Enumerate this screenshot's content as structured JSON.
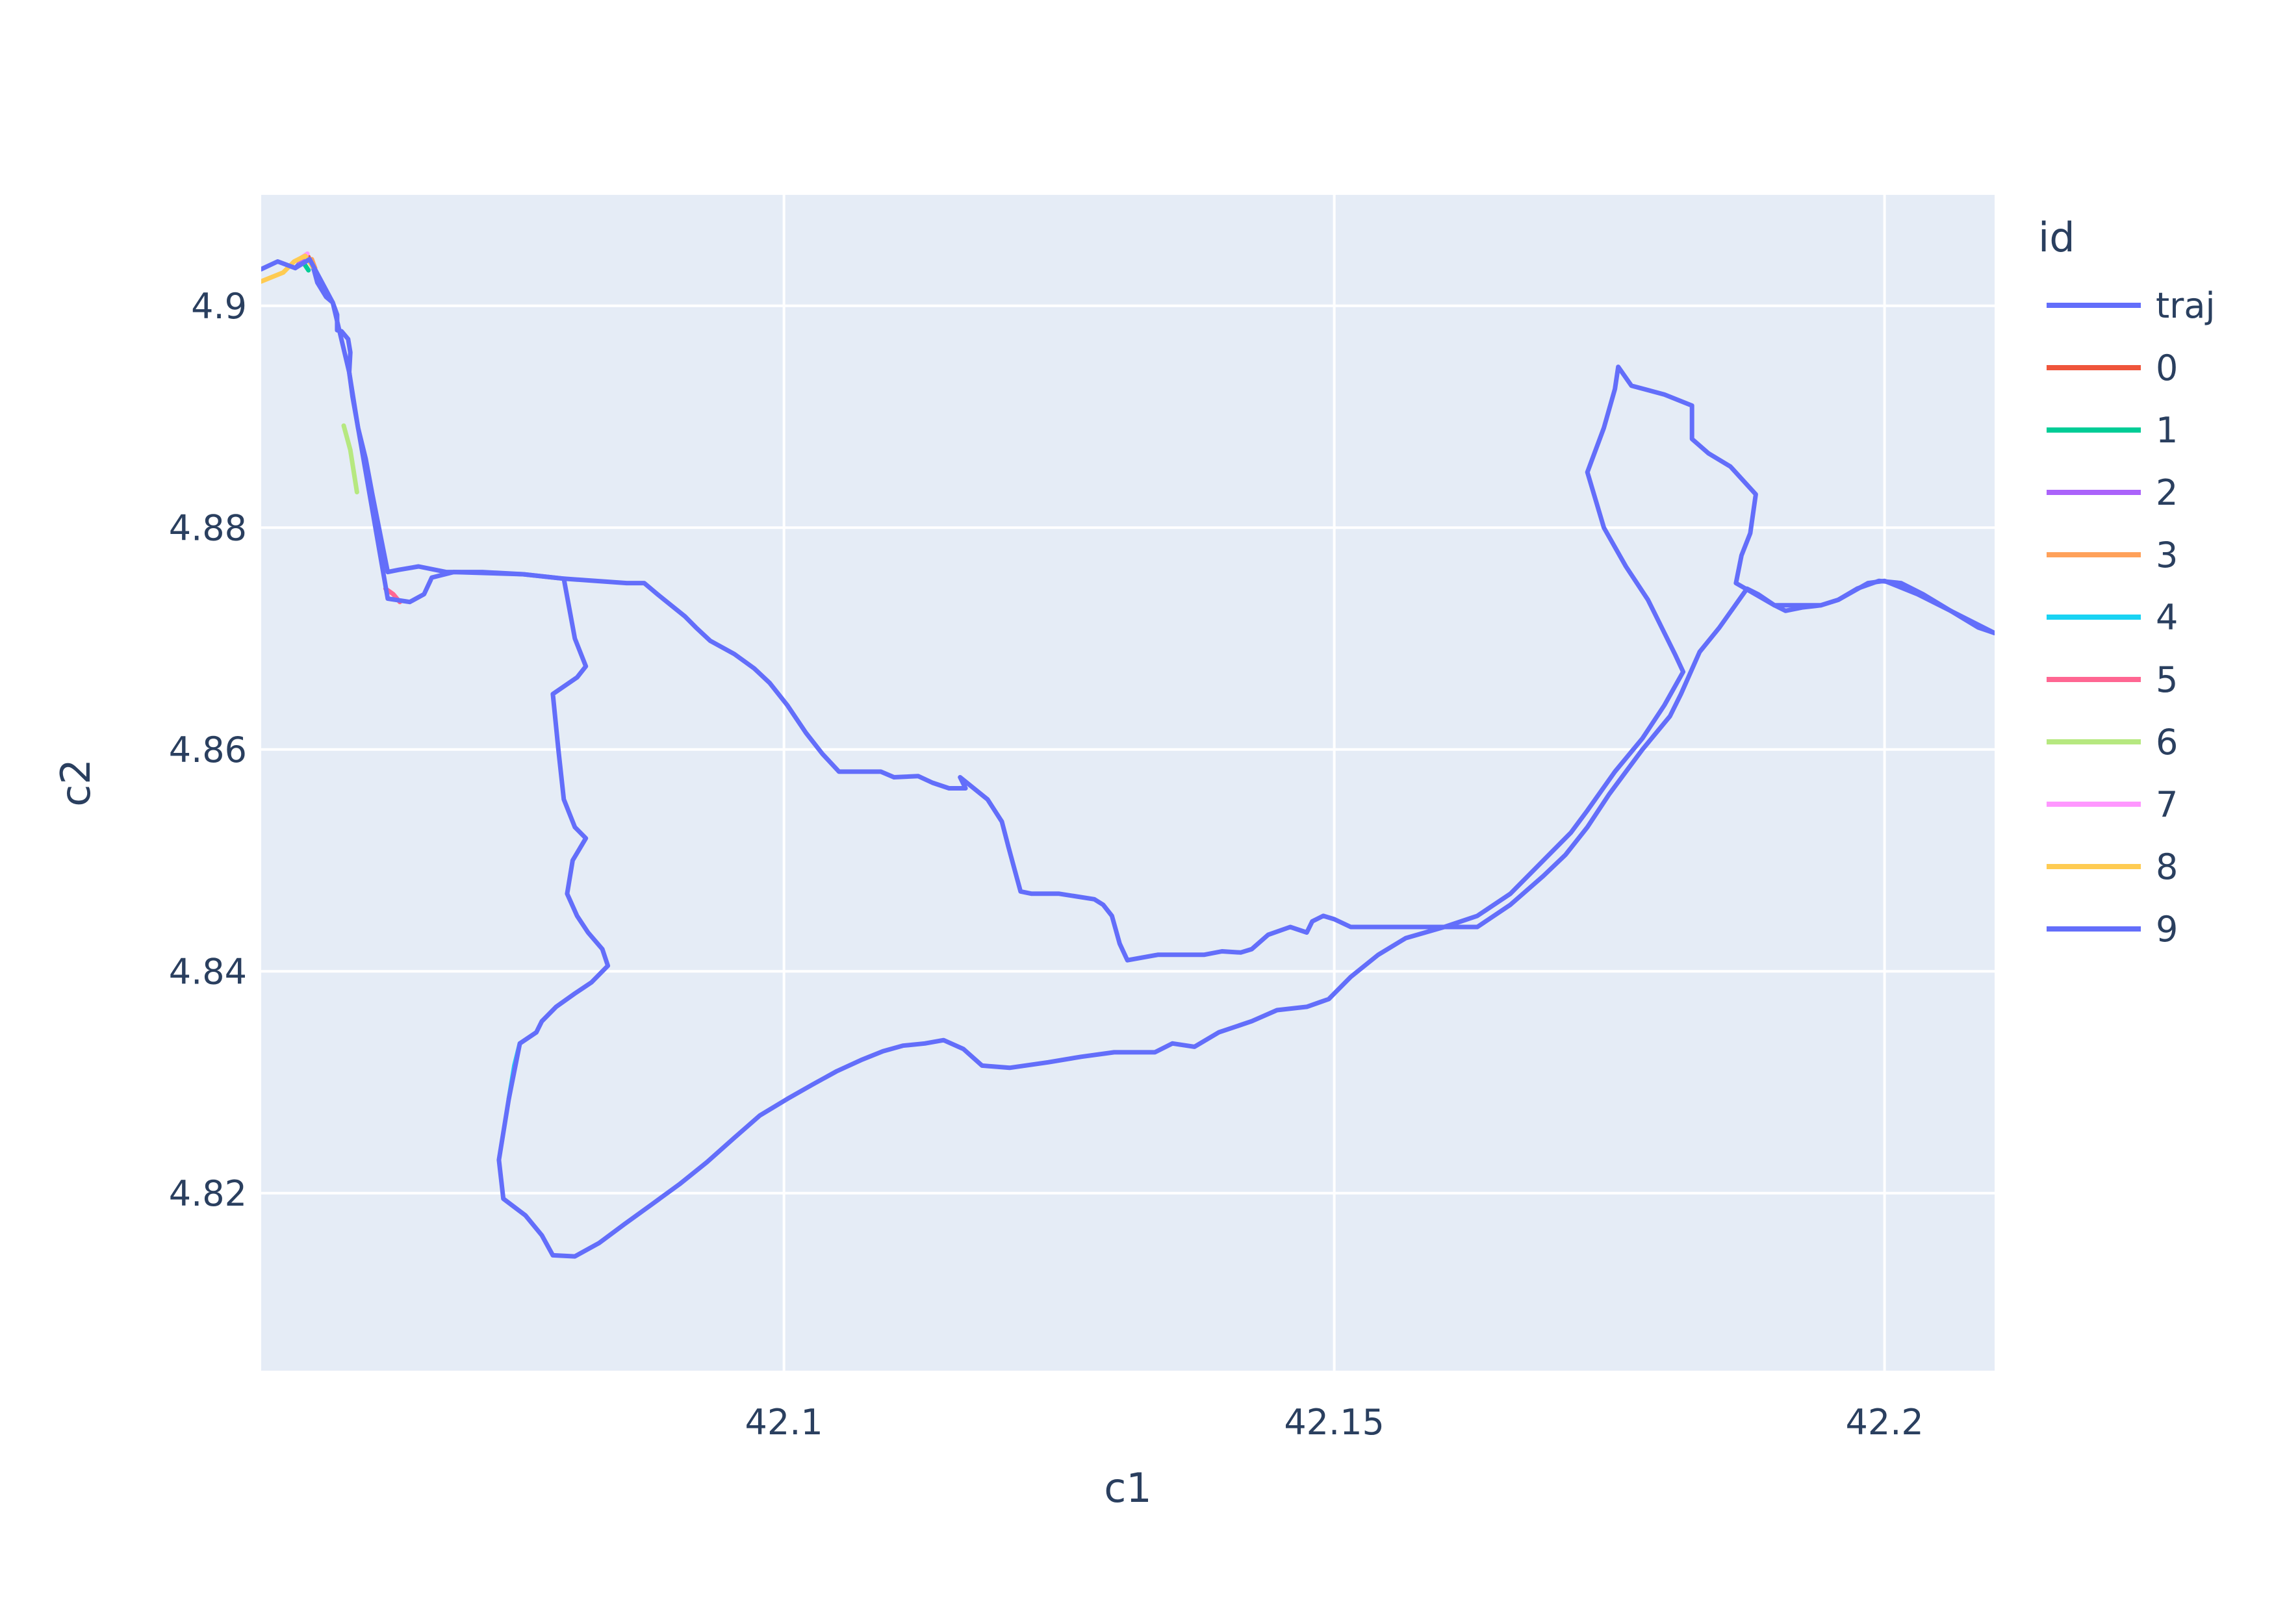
{
  "chart_data": {
    "type": "line",
    "xlabel": "c1",
    "ylabel": "c2",
    "xlim": [
      42.0525,
      42.21
    ],
    "ylim": [
      4.804,
      4.91
    ],
    "x_ticks": [
      {
        "value": 42.1,
        "label": "42.1"
      },
      {
        "value": 42.15,
        "label": "42.15"
      },
      {
        "value": 42.2,
        "label": "42.2"
      }
    ],
    "y_ticks": [
      {
        "value": 4.82,
        "label": "4.82"
      },
      {
        "value": 4.84,
        "label": "4.84"
      },
      {
        "value": 4.86,
        "label": "4.86"
      },
      {
        "value": 4.88,
        "label": "4.88"
      },
      {
        "value": 4.9,
        "label": "4.9"
      }
    ],
    "grid": true,
    "legend_title": "id",
    "legend_position": "right",
    "plot_bgcolor": "#e5ecf6",
    "series": [
      {
        "name": "traj",
        "color": "#636efa",
        "points": [
          [
            42.0556,
            4.9034
          ],
          [
            42.0565,
            4.9044
          ],
          [
            42.0569,
            4.9042
          ],
          [
            42.0573,
            4.9032
          ],
          [
            42.0576,
            4.9021
          ],
          [
            42.0584,
            4.9008
          ],
          [
            42.059,
            4.9003
          ],
          [
            42.0594,
            4.8992
          ],
          [
            42.0594,
            4.8978
          ],
          [
            42.0598,
            4.8977
          ],
          [
            42.0604,
            4.897
          ],
          [
            42.0606,
            4.8958
          ],
          [
            42.0605,
            4.894
          ],
          [
            42.0608,
            4.8918
          ],
          [
            42.0613,
            4.889
          ],
          [
            42.062,
            4.8862
          ],
          [
            42.0626,
            4.883
          ],
          [
            42.0634,
            4.879
          ],
          [
            42.064,
            4.876
          ],
          [
            42.065,
            4.8762
          ],
          [
            42.0668,
            4.8765
          ],
          [
            42.0693,
            4.876
          ],
          [
            42.0726,
            4.876
          ],
          [
            42.0763,
            4.8758
          ],
          [
            42.08,
            4.8754
          ],
          [
            42.0857,
            4.875
          ],
          [
            42.0873,
            4.875
          ],
          [
            42.0885,
            4.874
          ],
          [
            42.091,
            4.872
          ],
          [
            42.092,
            4.871
          ],
          [
            42.0933,
            4.8698
          ],
          [
            42.0955,
            4.8686
          ],
          [
            42.0973,
            4.8673
          ],
          [
            42.0987,
            4.866
          ],
          [
            42.1003,
            4.864
          ],
          [
            42.102,
            4.8615
          ],
          [
            42.1035,
            4.8596
          ],
          [
            42.105,
            4.858
          ],
          [
            42.107,
            4.858
          ],
          [
            42.1088,
            4.858
          ],
          [
            42.11,
            4.8575
          ],
          [
            42.1122,
            4.8576
          ],
          [
            42.1135,
            4.857
          ],
          [
            42.115,
            4.8565
          ],
          [
            42.1165,
            4.8565
          ],
          [
            42.116,
            4.8575
          ],
          [
            42.1185,
            4.8555
          ],
          [
            42.1198,
            4.8535
          ],
          [
            42.1204,
            4.8512
          ],
          [
            42.121,
            4.849
          ],
          [
            42.1215,
            4.8472
          ],
          [
            42.1225,
            4.847
          ],
          [
            42.125,
            4.847
          ],
          [
            42.1282,
            4.8465
          ],
          [
            42.129,
            4.846
          ],
          [
            42.1298,
            4.845
          ],
          [
            42.1305,
            4.8425
          ],
          [
            42.1312,
            4.841
          ],
          [
            42.134,
            4.8415
          ],
          [
            42.136,
            4.8415
          ],
          [
            42.1382,
            4.8415
          ],
          [
            42.1398,
            4.8418
          ],
          [
            42.1415,
            4.8417
          ],
          [
            42.1425,
            4.842
          ],
          [
            42.144,
            4.8433
          ],
          [
            42.146,
            4.844
          ],
          [
            42.1475,
            4.8435
          ],
          [
            42.148,
            4.8445
          ],
          [
            42.149,
            4.845
          ],
          [
            42.15,
            4.8447
          ],
          [
            42.1515,
            4.844
          ],
          [
            42.154,
            4.844
          ],
          [
            42.1575,
            4.844
          ],
          [
            42.16,
            4.844
          ],
          [
            42.163,
            4.844
          ],
          [
            42.166,
            4.846
          ],
          [
            42.169,
            4.8486
          ],
          [
            42.171,
            4.8505
          ],
          [
            42.173,
            4.853
          ],
          [
            42.175,
            4.856
          ],
          [
            42.178,
            4.86
          ],
          [
            42.1805,
            4.863
          ],
          [
            42.1815,
            4.865
          ],
          [
            42.1832,
            4.8688
          ],
          [
            42.185,
            4.871
          ],
          [
            42.1875,
            4.8745
          ],
          [
            42.1885,
            4.874
          ],
          [
            42.19,
            4.873
          ],
          [
            42.191,
            4.8725
          ],
          [
            42.1925,
            4.8728
          ],
          [
            42.1942,
            4.873
          ],
          [
            42.1958,
            4.8735
          ],
          [
            42.1975,
            4.8745
          ],
          [
            42.1995,
            4.8752
          ],
          [
            42.2015,
            4.875
          ],
          [
            42.2035,
            4.874
          ],
          [
            42.206,
            4.8725
          ],
          [
            42.2085,
            4.871
          ],
          [
            42.21,
            4.8705
          ]
        ]
      },
      {
        "name": "0",
        "color": "#ef553b",
        "points": [
          [
            42.0562,
            4.904
          ],
          [
            42.0568,
            4.9044
          ]
        ]
      },
      {
        "name": "1",
        "color": "#00cc96",
        "points": [
          [
            42.0564,
            4.9038
          ],
          [
            42.0568,
            4.9032
          ]
        ]
      },
      {
        "name": "2",
        "color": "#ab63fa",
        "points": [
          [
            42.0559,
            4.904
          ],
          [
            42.0566,
            4.9045
          ]
        ]
      },
      {
        "name": "3",
        "color": "#ffa15a",
        "points": [
          [
            42.0571,
            4.9042
          ],
          [
            42.0574,
            4.9034
          ]
        ]
      },
      {
        "name": "4",
        "color": "#19d3f3",
        "points": [
          [
            42.076,
            4.8335
          ],
          [
            42.0755,
            4.8315
          ],
          [
            42.075,
            4.8285
          ]
        ]
      },
      {
        "name": "5",
        "color": "#ff6692",
        "points": [
          [
            42.0638,
            4.8745
          ],
          [
            42.0645,
            4.874
          ],
          [
            42.0651,
            4.8733
          ]
        ]
      },
      {
        "name": "6",
        "color": "#b6e880",
        "points": [
          [
            42.06,
            4.8892
          ],
          [
            42.0606,
            4.887
          ],
          [
            42.0612,
            4.8832
          ]
        ]
      },
      {
        "name": "7",
        "color": "#ff97ff",
        "points": [
          [
            42.0561,
            4.9043
          ],
          [
            42.0567,
            4.9047
          ]
        ]
      },
      {
        "name": "8",
        "color": "#fecb52",
        "points": [
          [
            42.0525,
            4.9022
          ],
          [
            42.0545,
            4.903
          ],
          [
            42.0555,
            4.904
          ],
          [
            42.0565,
            4.9045
          ],
          [
            42.0572,
            4.9035
          ]
        ]
      },
      {
        "name": "9",
        "color": "#636efa",
        "points": [
          [
            42.0525,
            4.9033
          ],
          [
            42.054,
            4.904
          ],
          [
            42.0556,
            4.9034
          ],
          [
            42.0569,
            4.9042
          ],
          [
            42.059,
            4.9003
          ],
          [
            42.0605,
            4.894
          ],
          [
            42.0613,
            4.889
          ],
          [
            42.064,
            4.8736
          ],
          [
            42.066,
            4.8733
          ],
          [
            42.0673,
            4.874
          ],
          [
            42.068,
            4.8755
          ],
          [
            42.07,
            4.876
          ],
          [
            42.0763,
            4.8758
          ],
          [
            42.08,
            4.8754
          ],
          [
            42.081,
            4.87
          ],
          [
            42.082,
            4.8675
          ],
          [
            42.0812,
            4.8665
          ],
          [
            42.079,
            4.865
          ],
          [
            42.0795,
            4.86
          ],
          [
            42.08,
            4.8555
          ],
          [
            42.081,
            4.853
          ],
          [
            42.082,
            4.852
          ],
          [
            42.0808,
            4.85
          ],
          [
            42.0803,
            4.847
          ],
          [
            42.0812,
            4.845
          ],
          [
            42.0822,
            4.8435
          ],
          [
            42.0835,
            4.842
          ],
          [
            42.084,
            4.8405
          ],
          [
            42.0825,
            4.839
          ],
          [
            42.081,
            4.838
          ],
          [
            42.0793,
            4.8368
          ],
          [
            42.078,
            4.8355
          ],
          [
            42.0775,
            4.8345
          ],
          [
            42.076,
            4.8335
          ],
          [
            42.075,
            4.8285
          ],
          [
            42.0741,
            4.823
          ],
          [
            42.0745,
            4.8195
          ],
          [
            42.0765,
            4.818
          ],
          [
            42.078,
            4.8162
          ],
          [
            42.079,
            4.8144
          ],
          [
            42.081,
            4.8143
          ],
          [
            42.0832,
            4.8155
          ],
          [
            42.0855,
            4.8172
          ],
          [
            42.088,
            4.819
          ],
          [
            42.0905,
            4.8208
          ],
          [
            42.093,
            4.8228
          ],
          [
            42.0955,
            4.825
          ],
          [
            42.0978,
            4.827
          ],
          [
            42.1003,
            4.8285
          ],
          [
            42.1026,
            4.8298
          ],
          [
            42.1048,
            4.831
          ],
          [
            42.107,
            4.832
          ],
          [
            42.109,
            4.8328
          ],
          [
            42.1108,
            4.8333
          ],
          [
            42.1128,
            4.8335
          ],
          [
            42.1145,
            4.8338
          ],
          [
            42.1163,
            4.833
          ],
          [
            42.118,
            4.8315
          ],
          [
            42.1205,
            4.8313
          ],
          [
            42.124,
            4.8318
          ],
          [
            42.127,
            4.8323
          ],
          [
            42.13,
            4.8327
          ],
          [
            42.1337,
            4.8327
          ],
          [
            42.1353,
            4.8335
          ],
          [
            42.1373,
            4.8332
          ],
          [
            42.1395,
            4.8345
          ],
          [
            42.1425,
            4.8355
          ],
          [
            42.1448,
            4.8365
          ],
          [
            42.1475,
            4.8368
          ],
          [
            42.1495,
            4.8375
          ],
          [
            42.1515,
            4.8395
          ],
          [
            42.154,
            4.8415
          ],
          [
            42.1565,
            4.843
          ],
          [
            42.16,
            4.844
          ],
          [
            42.163,
            4.845
          ],
          [
            42.166,
            4.847
          ],
          [
            42.169,
            4.85
          ],
          [
            42.1715,
            4.8525
          ],
          [
            42.173,
            4.8545
          ],
          [
            42.1755,
            4.858
          ],
          [
            42.178,
            4.861
          ],
          [
            42.18,
            4.864
          ],
          [
            42.1817,
            4.867
          ],
          [
            42.181,
            4.8685
          ],
          [
            42.18,
            4.8705
          ],
          [
            42.1785,
            4.8735
          ],
          [
            42.1765,
            4.8765
          ],
          [
            42.1745,
            4.88
          ],
          [
            42.173,
            4.885
          ],
          [
            42.1745,
            4.889
          ],
          [
            42.1755,
            4.8925
          ],
          [
            42.1758,
            4.8945
          ],
          [
            42.177,
            4.8928
          ],
          [
            42.18,
            4.892
          ],
          [
            42.1825,
            4.891
          ],
          [
            42.1825,
            4.888
          ],
          [
            42.184,
            4.8867
          ],
          [
            42.186,
            4.8855
          ],
          [
            42.1883,
            4.883
          ],
          [
            42.1878,
            4.8795
          ],
          [
            42.187,
            4.8775
          ],
          [
            42.1865,
            4.875
          ],
          [
            42.19,
            4.873
          ],
          [
            42.1942,
            4.873
          ],
          [
            42.1958,
            4.8735
          ],
          [
            42.1985,
            4.875
          ],
          [
            42.2,
            4.8752
          ],
          [
            42.203,
            4.874
          ],
          [
            42.206,
            4.8725
          ],
          [
            42.21,
            4.8705
          ]
        ]
      }
    ]
  }
}
